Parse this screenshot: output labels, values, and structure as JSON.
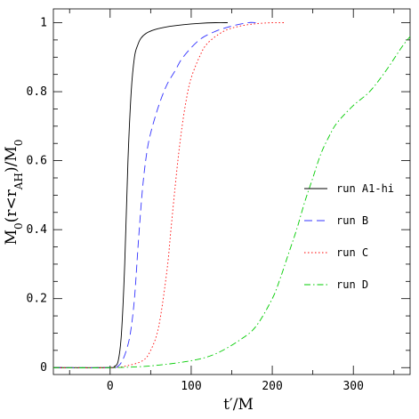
{
  "chart_data": {
    "type": "line",
    "xlabel_main": "t",
    "xlabel_prime": "′",
    "xlabel_rest": "/M",
    "ylabel_main": "M",
    "ylabel_sub0": "0",
    "ylabel_mid": "(r<r",
    "ylabel_subAH": "AH",
    "ylabel_end": ")/M",
    "ylabel_sub0b": "0",
    "xlim": [
      -70,
      370
    ],
    "ylim": [
      -0.02,
      1.04
    ],
    "xticks": [
      0,
      100,
      200,
      300
    ],
    "yticks": [
      0,
      0.2,
      0.4,
      0.6,
      0.8,
      1
    ],
    "ytick_labels": [
      "0",
      "0.2",
      "0.4",
      "0.6",
      "0.8",
      "1"
    ],
    "xtick_labels": [
      "0",
      "100",
      "200",
      "300"
    ],
    "legend_position": "right-center",
    "series": [
      {
        "name": "run A1-hi",
        "color": "#000000",
        "dash": "",
        "x": [
          -70,
          0,
          5,
          10,
          14,
          18,
          22,
          26,
          30,
          34,
          38,
          45,
          55,
          70,
          90,
          110,
          130,
          145
        ],
        "y": [
          0,
          0,
          0.003,
          0.02,
          0.1,
          0.3,
          0.6,
          0.8,
          0.9,
          0.935,
          0.955,
          0.97,
          0.98,
          0.988,
          0.994,
          0.998,
          1.0,
          1.0
        ]
      },
      {
        "name": "run B",
        "color": "#3333ff",
        "dash": "9,5",
        "x": [
          -70,
          0,
          10,
          15,
          20,
          25,
          30,
          35,
          40,
          45,
          50,
          60,
          70,
          80,
          90,
          110,
          130,
          150,
          170,
          180
        ],
        "y": [
          0,
          0,
          0.005,
          0.02,
          0.05,
          0.1,
          0.2,
          0.37,
          0.52,
          0.62,
          0.68,
          0.76,
          0.82,
          0.86,
          0.9,
          0.95,
          0.975,
          0.99,
          1.0,
          1.0
        ]
      },
      {
        "name": "run C",
        "color": "#ff0000",
        "dash": "1.5,2.5",
        "x": [
          -70,
          0,
          20,
          40,
          50,
          60,
          70,
          75,
          80,
          85,
          90,
          95,
          100,
          110,
          120,
          140,
          160,
          180,
          200,
          215
        ],
        "y": [
          0,
          0,
          0.005,
          0.02,
          0.05,
          0.12,
          0.28,
          0.4,
          0.52,
          0.63,
          0.72,
          0.79,
          0.84,
          0.9,
          0.94,
          0.975,
          0.99,
          0.997,
          1.0,
          1.0
        ]
      },
      {
        "name": "run D",
        "color": "#00cc00",
        "dash": "7,3,1.5,3",
        "x": [
          -70,
          0,
          50,
          100,
          130,
          160,
          180,
          200,
          210,
          220,
          230,
          240,
          250,
          260,
          270,
          280,
          300,
          320,
          340,
          360,
          370
        ],
        "y": [
          0,
          0,
          0.005,
          0.02,
          0.04,
          0.08,
          0.12,
          0.2,
          0.26,
          0.33,
          0.4,
          0.48,
          0.55,
          0.62,
          0.67,
          0.71,
          0.76,
          0.8,
          0.86,
          0.93,
          0.96
        ]
      }
    ]
  }
}
